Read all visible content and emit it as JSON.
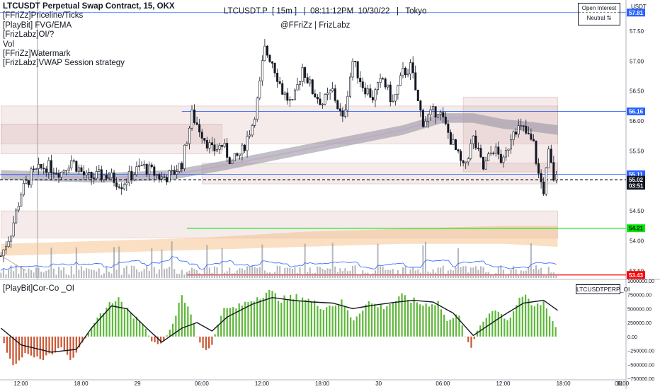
{
  "header": {
    "symbol_title": "LTCUSDT Perpetual Swap Contract, 15, OKX",
    "indicators": [
      "[FFriZz]Priceline/Ticks",
      "[PlayBit] FVG/EMA",
      "[FrizLabz]OI/?",
      "Vol",
      "[FFriZz]Watermark",
      "[FrizLabz]VWAP Session strategy"
    ],
    "watermark_line1": "LTCUSDT.P  [ 15m ]   |  08:11:12PM  10/30/22   |   Tokyo",
    "watermark_line2": "@FFriZz  |  FrizLabz",
    "oi_box_title": "Open Interest",
    "oi_box_value": "Neutral ⇅",
    "currency": "USDT"
  },
  "price_axis": {
    "ticks": [
      "57.50",
      "57.00",
      "56.50",
      "56.00",
      "55.50",
      "54.50",
      "54.00",
      "53.50"
    ],
    "labels": [
      {
        "text": "57.81",
        "value": 57.81,
        "color": "#2962ff",
        "text_color": "#ffffff"
      },
      {
        "text": "56.16",
        "value": 56.16,
        "color": "#2962ff",
        "text_color": "#ffffff"
      },
      {
        "text": "55.11",
        "value": 55.11,
        "color": "#2962ff",
        "text_color": "#ffffff"
      },
      {
        "text": "55.02",
        "value": 55.02,
        "color": "#131722",
        "text_color": "#ffffff"
      },
      {
        "text": "03:51",
        "value": 54.92,
        "color": "#131722",
        "text_color": "#ffffff"
      },
      {
        "text": "54.21",
        "value": 54.21,
        "color": "#00e600",
        "text_color": "#131722"
      },
      {
        "text": "53.43",
        "value": 53.43,
        "color": "#ff0000",
        "text_color": "#ffffff"
      }
    ]
  },
  "time_axis": {
    "labels": [
      "12:00",
      "18:00",
      "29",
      "06:00",
      "12:00",
      "18:00",
      "30",
      "06:00",
      "12:00",
      "18:00",
      "31",
      "06:00"
    ]
  },
  "indicator_pane": {
    "name": "[PlayBit]Cor-Co _OI",
    "symbol": "LTCUSDTPERP_OI",
    "ticks": [
      "1000000.00",
      "750000.00",
      "500000.00",
      "250000.00",
      "0.00",
      "−250000.00",
      "−500000.00",
      "−750000.00"
    ]
  },
  "chart_data": [
    {
      "type": "candlestick",
      "title": "LTCUSDT Perpetual Swap Contract, 15, OKX",
      "xlabel": "",
      "ylabel": "USDT",
      "ylim": [
        53.38,
        58.02
      ],
      "x_range_hours": [
        -2.1,
        60.2
      ],
      "x_origin": "10/28 12:00",
      "grid": false,
      "levels": [
        {
          "value": 57.81,
          "label": "57.81",
          "color": "#2962ff"
        },
        {
          "value": 56.16,
          "label": "56.16",
          "color": "#2962ff"
        },
        {
          "value": 55.11,
          "label": "55.11",
          "color": "#2962ff"
        },
        {
          "value": 55.02,
          "label": "55.02",
          "color": "#131722",
          "style": "dashed"
        },
        {
          "value": 54.21,
          "label": "54.21",
          "color": "#00e600"
        },
        {
          "value": 53.43,
          "label": "53.43",
          "color": "#ff0000"
        }
      ],
      "close_path": [
        {
          "x": -2.0,
          "y": 53.75
        },
        {
          "x": -1.0,
          "y": 54.15
        },
        {
          "x": 0.0,
          "y": 54.8
        },
        {
          "x": 1.0,
          "y": 55.1
        },
        {
          "x": 2.5,
          "y": 55.25
        },
        {
          "x": 4.0,
          "y": 55.15
        },
        {
          "x": 5.0,
          "y": 55.35
        },
        {
          "x": 6.5,
          "y": 55.05
        },
        {
          "x": 8.5,
          "y": 55.1
        },
        {
          "x": 10.0,
          "y": 54.95
        },
        {
          "x": 12.0,
          "y": 55.25
        },
        {
          "x": 14.0,
          "y": 55.05
        },
        {
          "x": 15.0,
          "y": 55.1
        },
        {
          "x": 16.0,
          "y": 55.3
        },
        {
          "x": 17.0,
          "y": 56.1
        },
        {
          "x": 18.0,
          "y": 55.8
        },
        {
          "x": 19.0,
          "y": 55.5
        },
        {
          "x": 20.0,
          "y": 55.6
        },
        {
          "x": 21.0,
          "y": 55.3
        },
        {
          "x": 22.0,
          "y": 55.5
        },
        {
          "x": 23.0,
          "y": 55.95
        },
        {
          "x": 23.6,
          "y": 56.4
        },
        {
          "x": 24.2,
          "y": 57.2
        },
        {
          "x": 25.0,
          "y": 57.0
        },
        {
          "x": 26.0,
          "y": 56.5
        },
        {
          "x": 27.0,
          "y": 56.25
        },
        {
          "x": 28.0,
          "y": 56.9
        },
        {
          "x": 29.0,
          "y": 56.5
        },
        {
          "x": 30.0,
          "y": 56.3
        },
        {
          "x": 31.0,
          "y": 56.5
        },
        {
          "x": 32.0,
          "y": 56.0
        },
        {
          "x": 33.0,
          "y": 57.0
        },
        {
          "x": 34.0,
          "y": 56.6
        },
        {
          "x": 35.0,
          "y": 56.4
        },
        {
          "x": 36.0,
          "y": 56.7
        },
        {
          "x": 37.0,
          "y": 56.3
        },
        {
          "x": 38.0,
          "y": 56.8
        },
        {
          "x": 38.8,
          "y": 56.9
        },
        {
          "x": 39.5,
          "y": 56.3
        },
        {
          "x": 40.0,
          "y": 56.0
        },
        {
          "x": 41.5,
          "y": 56.2
        },
        {
          "x": 43.0,
          "y": 55.6
        },
        {
          "x": 44.0,
          "y": 55.2
        },
        {
          "x": 45.0,
          "y": 55.7
        },
        {
          "x": 46.0,
          "y": 55.2
        },
        {
          "x": 47.0,
          "y": 55.55
        },
        {
          "x": 48.0,
          "y": 55.3
        },
        {
          "x": 49.0,
          "y": 55.9
        },
        {
          "x": 50.0,
          "y": 55.85
        },
        {
          "x": 51.0,
          "y": 55.6
        },
        {
          "x": 51.5,
          "y": 55.1
        },
        {
          "x": 52.0,
          "y": 54.85
        },
        {
          "x": 52.5,
          "y": 55.45
        },
        {
          "x": 53.0,
          "y": 55.05
        },
        {
          "x": 53.4,
          "y": 55.02
        }
      ],
      "vwap_band": [
        {
          "x": -2.0,
          "y": 55.1
        },
        {
          "x": 8.0,
          "y": 55.05
        },
        {
          "x": 15.0,
          "y": 55.1
        },
        {
          "x": 20.0,
          "y": 55.25
        },
        {
          "x": 26.0,
          "y": 55.45
        },
        {
          "x": 32.0,
          "y": 55.65
        },
        {
          "x": 38.0,
          "y": 55.85
        },
        {
          "x": 42.0,
          "y": 56.05
        },
        {
          "x": 45.0,
          "y": 56.05
        },
        {
          "x": 48.0,
          "y": 55.95
        },
        {
          "x": 51.0,
          "y": 55.9
        },
        {
          "x": 53.4,
          "y": 55.85
        }
      ],
      "fvg_zones": [
        {
          "x0": -2.0,
          "x1": 53.4,
          "y0": 55.62,
          "y1": 56.25,
          "color": "#c48a8a"
        },
        {
          "x0": -2.0,
          "x1": 20.0,
          "y0": 55.45,
          "y1": 55.95,
          "color": "#c48a8a"
        },
        {
          "x0": 44.0,
          "x1": 53.4,
          "y0": 55.15,
          "y1": 56.4,
          "color": "#c48a8a"
        },
        {
          "x0": 18.0,
          "x1": 53.4,
          "y0": 54.95,
          "y1": 55.3,
          "color": "#c48a8a"
        },
        {
          "x0": -2.0,
          "x1": 53.4,
          "y0": 54.05,
          "y1": 54.5,
          "color": "#c48a8a"
        }
      ],
      "volume_profile": [
        {
          "x": -2.0,
          "y0": 53.75,
          "y1": 53.95
        },
        {
          "x": 8.0,
          "y0": 53.8,
          "y1": 54.0
        },
        {
          "x": 18.0,
          "y0": 53.85,
          "y1": 54.05
        },
        {
          "x": 28.0,
          "y0": 53.9,
          "y1": 54.15
        },
        {
          "x": 38.0,
          "y0": 53.95,
          "y1": 54.2
        },
        {
          "x": 48.0,
          "y0": 53.95,
          "y1": 54.25
        },
        {
          "x": 53.4,
          "y0": 53.9,
          "y1": 54.25
        }
      ]
    },
    {
      "type": "bar",
      "title": "[PlayBit]Cor-Co _OI",
      "xlabel": "",
      "ylabel": "",
      "ylim": [
        -750000,
        1000000
      ],
      "x_range_hours": [
        -2.1,
        60.2
      ],
      "grid": false,
      "histogram_envelope": [
        {
          "x": -2.0,
          "y": 0
        },
        {
          "x": -0.7,
          "y": -600000
        },
        {
          "x": 0.5,
          "y": -300000
        },
        {
          "x": 2.0,
          "y": -450000
        },
        {
          "x": 4.0,
          "y": -200000
        },
        {
          "x": 5.0,
          "y": -500000
        },
        {
          "x": 6.0,
          "y": -150000
        },
        {
          "x": 8.0,
          "y": 450000
        },
        {
          "x": 9.5,
          "y": 750000
        },
        {
          "x": 11.0,
          "y": 400000
        },
        {
          "x": 12.0,
          "y": 300000
        },
        {
          "x": 13.0,
          "y": -100000
        },
        {
          "x": 14.0,
          "y": -150000
        },
        {
          "x": 15.0,
          "y": 200000
        },
        {
          "x": 16.0,
          "y": 750000
        },
        {
          "x": 17.0,
          "y": 400000
        },
        {
          "x": 17.5,
          "y": 0
        },
        {
          "x": 18.3,
          "y": -300000
        },
        {
          "x": 19.0,
          "y": -150000
        },
        {
          "x": 20.0,
          "y": 500000
        },
        {
          "x": 21.5,
          "y": 550000
        },
        {
          "x": 23.0,
          "y": 700000
        },
        {
          "x": 24.5,
          "y": 850000
        },
        {
          "x": 26.0,
          "y": 700000
        },
        {
          "x": 28.0,
          "y": 750000
        },
        {
          "x": 30.0,
          "y": 550000
        },
        {
          "x": 32.0,
          "y": 650000
        },
        {
          "x": 33.0,
          "y": 300000
        },
        {
          "x": 34.5,
          "y": 650000
        },
        {
          "x": 36.0,
          "y": 550000
        },
        {
          "x": 38.0,
          "y": 750000
        },
        {
          "x": 40.0,
          "y": 600000
        },
        {
          "x": 41.5,
          "y": 650000
        },
        {
          "x": 42.5,
          "y": 250000
        },
        {
          "x": 43.5,
          "y": 500000
        },
        {
          "x": 44.2,
          "y": 0
        },
        {
          "x": 44.8,
          "y": -200000
        },
        {
          "x": 45.5,
          "y": 150000
        },
        {
          "x": 47.0,
          "y": 550000
        },
        {
          "x": 48.5,
          "y": 300000
        },
        {
          "x": 49.8,
          "y": 800000
        },
        {
          "x": 51.0,
          "y": 550000
        },
        {
          "x": 52.0,
          "y": 650000
        },
        {
          "x": 53.4,
          "y": 100000
        }
      ],
      "signal_line": [
        {
          "x": -2.0,
          "y": 150000
        },
        {
          "x": 0.0,
          "y": -150000
        },
        {
          "x": 3.0,
          "y": -280000
        },
        {
          "x": 5.5,
          "y": -230000
        },
        {
          "x": 7.0,
          "y": 150000
        },
        {
          "x": 9.0,
          "y": 550000
        },
        {
          "x": 10.5,
          "y": 500000
        },
        {
          "x": 12.5,
          "y": 150000
        },
        {
          "x": 14.0,
          "y": -100000
        },
        {
          "x": 16.0,
          "y": 150000
        },
        {
          "x": 17.5,
          "y": 250000
        },
        {
          "x": 19.0,
          "y": 100000
        },
        {
          "x": 20.5,
          "y": 350000
        },
        {
          "x": 23.0,
          "y": 580000
        },
        {
          "x": 25.0,
          "y": 700000
        },
        {
          "x": 27.0,
          "y": 650000
        },
        {
          "x": 29.0,
          "y": 620000
        },
        {
          "x": 31.0,
          "y": 600000
        },
        {
          "x": 33.0,
          "y": 500000
        },
        {
          "x": 35.0,
          "y": 560000
        },
        {
          "x": 37.0,
          "y": 610000
        },
        {
          "x": 39.0,
          "y": 650000
        },
        {
          "x": 41.0,
          "y": 620000
        },
        {
          "x": 43.0,
          "y": 420000
        },
        {
          "x": 45.0,
          "y": 20000
        },
        {
          "x": 46.5,
          "y": 200000
        },
        {
          "x": 48.0,
          "y": 380000
        },
        {
          "x": 50.0,
          "y": 600000
        },
        {
          "x": 52.0,
          "y": 650000
        },
        {
          "x": 53.4,
          "y": 470000
        }
      ]
    }
  ]
}
